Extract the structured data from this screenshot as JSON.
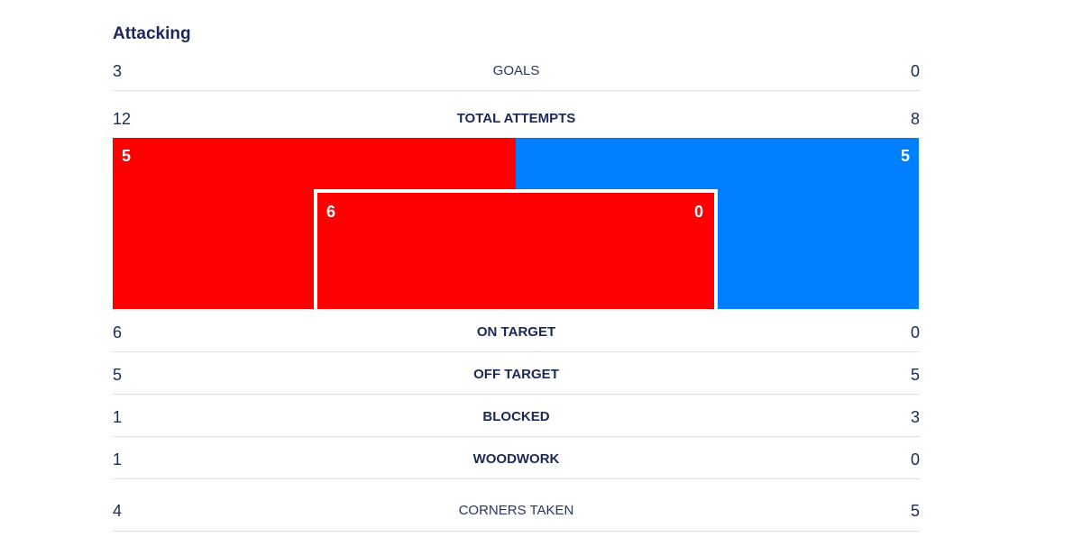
{
  "section": {
    "title": "Attacking"
  },
  "stats": {
    "goals": {
      "label": "GOALS",
      "home": "3",
      "away": "0"
    },
    "total_attempts": {
      "label": "TOTAL ATTEMPTS",
      "home": "12",
      "away": "8"
    },
    "on_target": {
      "label": "ON TARGET",
      "home": "6",
      "away": "0"
    },
    "off_target": {
      "label": "OFF TARGET",
      "home": "5",
      "away": "5"
    },
    "blocked": {
      "label": "BLOCKED",
      "home": "1",
      "away": "3"
    },
    "woodwork": {
      "label": "WOODWORK",
      "home": "1",
      "away": "0"
    },
    "corners_taken": {
      "label": "CORNERS TAKEN",
      "home": "4",
      "away": "5"
    }
  },
  "shots_graphic": {
    "outside_home": "5",
    "outside_away": "5",
    "inside_home": "6",
    "inside_away": "0",
    "home_share": 0.5,
    "colors": {
      "home": "#ff0000",
      "away": "#0080ff",
      "frame": "#ffffff"
    }
  },
  "colors": {
    "text": "#1b2858",
    "divider": "#dfe1e6"
  }
}
